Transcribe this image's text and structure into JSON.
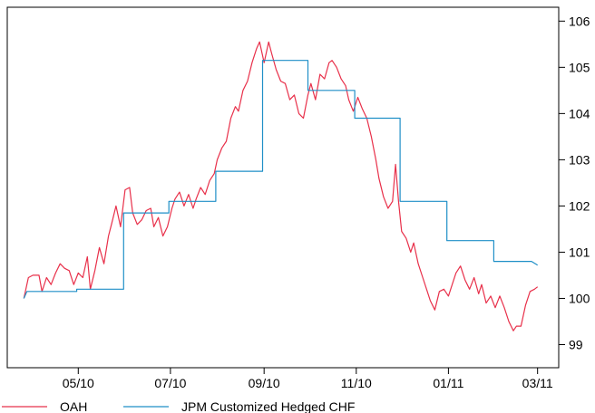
{
  "chart_data": {
    "type": "line",
    "title": "",
    "xlabel": "",
    "ylabel": "",
    "x_range": [
      "2010-03-15",
      "2011-03-15"
    ],
    "ylim": [
      98.5,
      106.3
    ],
    "y_ticks": [
      99,
      100,
      101,
      102,
      103,
      104,
      105,
      106
    ],
    "y_axis_side": "right",
    "x_ticks": [
      {
        "date": "2010-05-01",
        "label": "05/10"
      },
      {
        "date": "2010-07-01",
        "label": "07/10"
      },
      {
        "date": "2010-09-01",
        "label": "09/10"
      },
      {
        "date": "2010-11-01",
        "label": "11/10"
      },
      {
        "date": "2011-01-01",
        "label": "01/11"
      },
      {
        "date": "2011-03-01",
        "label": "03/11"
      }
    ],
    "grid": false,
    "legend_position": "bottom-left",
    "series": [
      {
        "name": "OAH",
        "color": "#e8304a",
        "points": [
          [
            "2010-03-26",
            100.0
          ],
          [
            "2010-03-29",
            100.45
          ],
          [
            "2010-04-01",
            100.5
          ],
          [
            "2010-04-05",
            100.5
          ],
          [
            "2010-04-07",
            100.15
          ],
          [
            "2010-04-10",
            100.45
          ],
          [
            "2010-04-13",
            100.3
          ],
          [
            "2010-04-16",
            100.55
          ],
          [
            "2010-04-19",
            100.75
          ],
          [
            "2010-04-22",
            100.65
          ],
          [
            "2010-04-25",
            100.6
          ],
          [
            "2010-04-28",
            100.3
          ],
          [
            "2010-05-01",
            100.55
          ],
          [
            "2010-05-04",
            100.45
          ],
          [
            "2010-05-07",
            100.9
          ],
          [
            "2010-05-09",
            100.2
          ],
          [
            "2010-05-12",
            100.6
          ],
          [
            "2010-05-15",
            101.1
          ],
          [
            "2010-05-18",
            100.75
          ],
          [
            "2010-05-21",
            101.35
          ],
          [
            "2010-05-23",
            101.6
          ],
          [
            "2010-05-26",
            102.0
          ],
          [
            "2010-05-29",
            101.55
          ],
          [
            "2010-06-01",
            102.35
          ],
          [
            "2010-06-04",
            102.4
          ],
          [
            "2010-06-06",
            101.85
          ],
          [
            "2010-06-09",
            101.6
          ],
          [
            "2010-06-12",
            101.7
          ],
          [
            "2010-06-15",
            101.9
          ],
          [
            "2010-06-18",
            101.95
          ],
          [
            "2010-06-20",
            101.55
          ],
          [
            "2010-06-23",
            101.75
          ],
          [
            "2010-06-26",
            101.35
          ],
          [
            "2010-06-29",
            101.55
          ],
          [
            "2010-07-02",
            101.95
          ],
          [
            "2010-07-04",
            102.15
          ],
          [
            "2010-07-07",
            102.3
          ],
          [
            "2010-07-10",
            102.0
          ],
          [
            "2010-07-13",
            102.25
          ],
          [
            "2010-07-16",
            101.95
          ],
          [
            "2010-07-18",
            102.15
          ],
          [
            "2010-07-21",
            102.4
          ],
          [
            "2010-07-24",
            102.25
          ],
          [
            "2010-07-27",
            102.55
          ],
          [
            "2010-07-30",
            102.7
          ],
          [
            "2010-08-01",
            103.0
          ],
          [
            "2010-08-04",
            103.25
          ],
          [
            "2010-08-07",
            103.4
          ],
          [
            "2010-08-10",
            103.9
          ],
          [
            "2010-08-13",
            104.15
          ],
          [
            "2010-08-15",
            104.05
          ],
          [
            "2010-08-18",
            104.5
          ],
          [
            "2010-08-21",
            104.7
          ],
          [
            "2010-08-24",
            105.1
          ],
          [
            "2010-08-27",
            105.4
          ],
          [
            "2010-08-29",
            105.55
          ],
          [
            "2010-09-01",
            105.1
          ],
          [
            "2010-09-04",
            105.55
          ],
          [
            "2010-09-06",
            105.3
          ],
          [
            "2010-09-09",
            104.95
          ],
          [
            "2010-09-12",
            104.7
          ],
          [
            "2010-09-15",
            104.65
          ],
          [
            "2010-09-18",
            104.3
          ],
          [
            "2010-09-21",
            104.4
          ],
          [
            "2010-09-24",
            104.0
          ],
          [
            "2010-09-27",
            103.9
          ],
          [
            "2010-09-30",
            104.4
          ],
          [
            "2010-10-02",
            104.65
          ],
          [
            "2010-10-05",
            104.3
          ],
          [
            "2010-10-08",
            104.85
          ],
          [
            "2010-10-11",
            104.75
          ],
          [
            "2010-10-14",
            105.1
          ],
          [
            "2010-10-16",
            105.15
          ],
          [
            "2010-10-19",
            105.0
          ],
          [
            "2010-10-22",
            104.75
          ],
          [
            "2010-10-25",
            104.6
          ],
          [
            "2010-10-27",
            104.3
          ],
          [
            "2010-10-30",
            104.05
          ],
          [
            "2010-11-02",
            104.35
          ],
          [
            "2010-11-05",
            104.1
          ],
          [
            "2010-11-08",
            103.9
          ],
          [
            "2010-11-11",
            103.5
          ],
          [
            "2010-11-14",
            103.0
          ],
          [
            "2010-11-16",
            102.6
          ],
          [
            "2010-11-19",
            102.2
          ],
          [
            "2010-11-22",
            101.95
          ],
          [
            "2010-11-25",
            102.1
          ],
          [
            "2010-11-27",
            102.9
          ],
          [
            "2010-11-29",
            102.1
          ],
          [
            "2010-12-01",
            101.45
          ],
          [
            "2010-12-04",
            101.3
          ],
          [
            "2010-12-07",
            101.0
          ],
          [
            "2010-12-09",
            101.2
          ],
          [
            "2010-12-12",
            100.75
          ],
          [
            "2010-12-15",
            100.45
          ],
          [
            "2010-12-18",
            100.15
          ],
          [
            "2010-12-20",
            99.95
          ],
          [
            "2010-12-23",
            99.75
          ],
          [
            "2010-12-26",
            100.15
          ],
          [
            "2010-12-29",
            100.2
          ],
          [
            "2011-01-01",
            100.05
          ],
          [
            "2011-01-04",
            100.35
          ],
          [
            "2011-01-06",
            100.55
          ],
          [
            "2011-01-09",
            100.7
          ],
          [
            "2011-01-12",
            100.4
          ],
          [
            "2011-01-15",
            100.2
          ],
          [
            "2011-01-18",
            100.45
          ],
          [
            "2011-01-21",
            100.1
          ],
          [
            "2011-01-23",
            100.3
          ],
          [
            "2011-01-26",
            99.9
          ],
          [
            "2011-01-29",
            100.05
          ],
          [
            "2011-02-01",
            99.8
          ],
          [
            "2011-02-04",
            100.05
          ],
          [
            "2011-02-07",
            99.8
          ],
          [
            "2011-02-10",
            99.5
          ],
          [
            "2011-02-13",
            99.3
          ],
          [
            "2011-02-15",
            99.4
          ],
          [
            "2011-02-18",
            99.4
          ],
          [
            "2011-02-21",
            99.85
          ],
          [
            "2011-02-24",
            100.15
          ],
          [
            "2011-02-27",
            100.2
          ],
          [
            "2011-03-01",
            100.25
          ]
        ]
      },
      {
        "name": "JPM Customized Hedged CHF",
        "color": "#1f8fc7",
        "points": [
          [
            "2010-03-26",
            100.0
          ],
          [
            "2010-03-28",
            100.15
          ],
          [
            "2010-04-30",
            100.15
          ],
          [
            "2010-04-30",
            100.2
          ],
          [
            "2010-05-31",
            100.2
          ],
          [
            "2010-05-31",
            101.85
          ],
          [
            "2010-06-30",
            101.85
          ],
          [
            "2010-06-30",
            102.1
          ],
          [
            "2010-07-31",
            102.1
          ],
          [
            "2010-07-31",
            102.75
          ],
          [
            "2010-08-31",
            102.75
          ],
          [
            "2010-08-31",
            105.15
          ],
          [
            "2010-09-30",
            105.15
          ],
          [
            "2010-09-30",
            104.5
          ],
          [
            "2010-10-31",
            104.5
          ],
          [
            "2010-10-31",
            103.9
          ],
          [
            "2010-11-30",
            103.9
          ],
          [
            "2010-11-30",
            102.1
          ],
          [
            "2010-12-31",
            102.1
          ],
          [
            "2010-12-31",
            101.25
          ],
          [
            "2011-01-31",
            101.25
          ],
          [
            "2011-01-31",
            100.8
          ],
          [
            "2011-02-25",
            100.8
          ],
          [
            "2011-03-01",
            100.72
          ]
        ]
      }
    ]
  }
}
